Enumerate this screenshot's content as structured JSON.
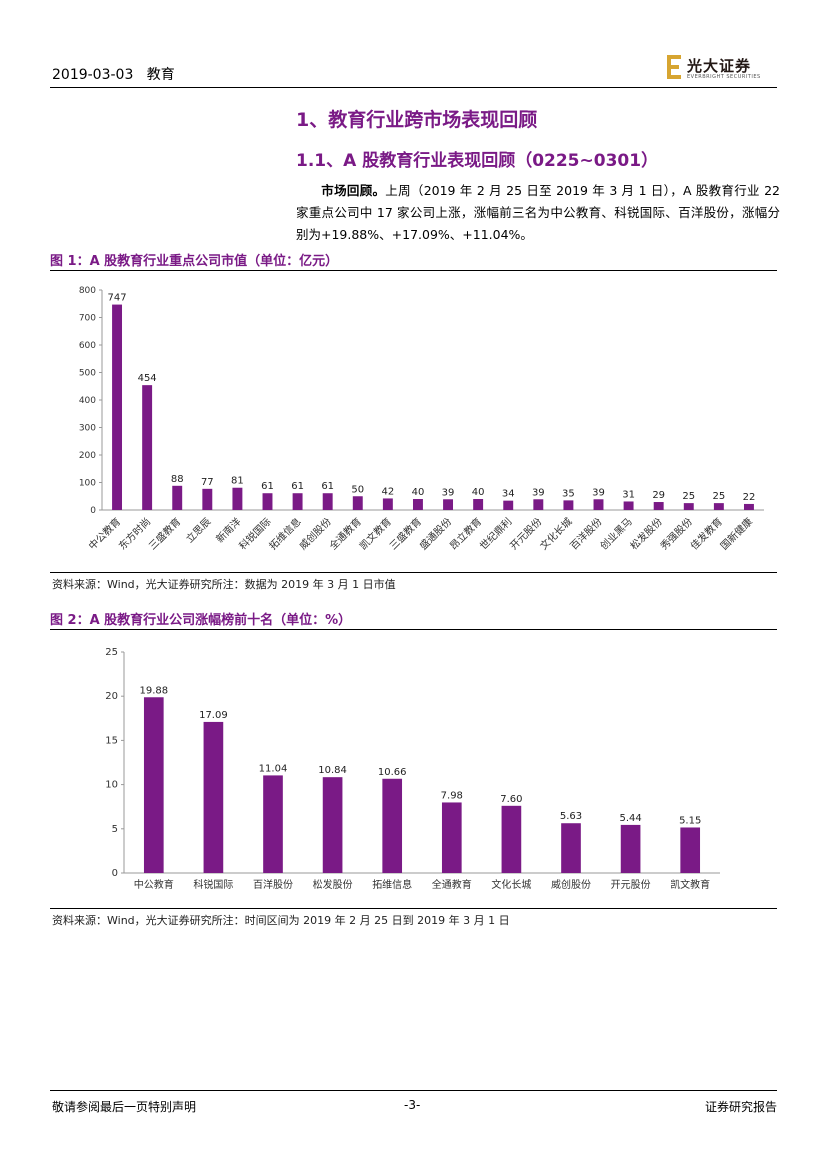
{
  "header": {
    "date": "2019-03-03",
    "sector": "教育"
  },
  "logo": {
    "text_cn": "光大证券",
    "text_en": "EVERBRIGHT SECURITIES",
    "accent_color": "#d7a531"
  },
  "section": {
    "h1": "1、教育行业跨市场表现回顾",
    "h2": "1.1、A 股教育行业表现回顾（0225~0301）",
    "para_bold": "市场回顾。",
    "para_text": "上周（2019 年 2 月 25 日至 2019 年 3 月 1 日），A 股教育行业 22 家重点公司中 17 家公司上涨，涨幅前三名为中公教育、科锐国际、百洋股份，涨幅分别为+19.88%、+17.09%、+11.04%。"
  },
  "figure1": {
    "title": "图 1：A 股教育行业重点公司市值（单位：亿元）",
    "source": "资料来源：Wind，光大证券研究所注：数据为 2019 年 3 月 1 日市值"
  },
  "figure2": {
    "title": "图 2：A 股教育行业公司涨幅榜前十名（单位：%）",
    "source": "资料来源：Wind，光大证券研究所注：时间区间为 2019 年 2 月 25 日到 2019 年 3 月 1 日"
  },
  "chart_data": [
    {
      "type": "bar",
      "bar_color": "#7a1a86",
      "categories": [
        "中公教育",
        "东方时尚",
        "三盛教育",
        "立思辰",
        "新南洋",
        "科锐国际",
        "拓维信息",
        "威创股份",
        "全通教育",
        "凯文教育",
        "三盛教育",
        "盛通股份",
        "昂立教育",
        "世纪鼎利",
        "开元股份",
        "文化长城",
        "百洋股份",
        "创业黑马",
        "松发股份",
        "秀强股份",
        "佳发教育",
        "国新健康"
      ],
      "values": [
        747,
        454,
        88,
        77,
        81,
        61,
        61,
        61,
        50,
        42,
        40,
        39,
        40,
        34,
        39,
        35,
        39,
        31,
        29,
        25,
        25,
        22
      ],
      "labels": [
        "747",
        "454",
        "88",
        "77",
        "81",
        "61",
        "61",
        "61",
        "50",
        "42",
        "40",
        "39",
        "40",
        "34",
        "39",
        "35",
        "39",
        "31",
        "29",
        "25",
        "25",
        "22"
      ],
      "ylim": [
        0,
        800
      ],
      "yticks": [
        "0",
        "100",
        "200",
        "300",
        "400",
        "500",
        "600",
        "700",
        "800"
      ]
    },
    {
      "type": "bar",
      "bar_color": "#7a1a86",
      "categories": [
        "中公教育",
        "科锐国际",
        "百洋股份",
        "松发股份",
        "拓维信息",
        "全通教育",
        "文化长城",
        "威创股份",
        "开元股份",
        "凯文教育"
      ],
      "values": [
        19.88,
        17.09,
        11.04,
        10.84,
        10.66,
        7.98,
        7.6,
        5.63,
        5.44,
        5.15
      ],
      "labels": [
        "19.88",
        "17.09",
        "11.04",
        "10.84",
        "10.66",
        "7.98",
        "7.60",
        "5.63",
        "5.44",
        "5.15"
      ],
      "ylim": [
        0,
        25
      ],
      "yticks": [
        "0",
        "5",
        "10",
        "15",
        "20",
        "25"
      ]
    }
  ],
  "footer": {
    "disclaimer": "敬请参阅最后一页特别声明",
    "page": "-3-",
    "doc_type": "证券研究报告"
  }
}
